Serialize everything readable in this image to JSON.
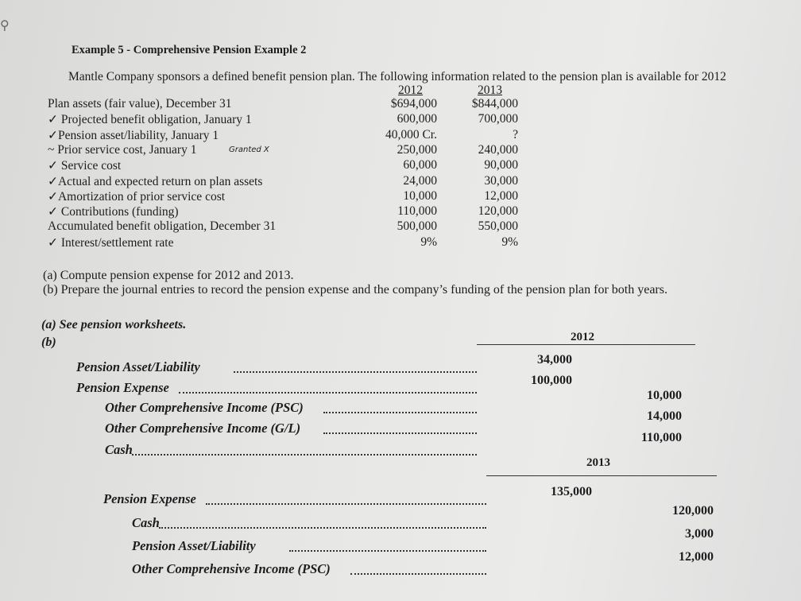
{
  "search_icon": "magnifier-icon",
  "title": "Example 5 - Comprehensive Pension Example 2",
  "intro": "Mantle Company sponsors a defined benefit pension plan. The following information related to the pension plan is available for 2012",
  "table": {
    "headers": [
      "2012",
      "2013"
    ],
    "rows": [
      {
        "label": "Plan assets (fair value), December 31",
        "y2012": "$694,000",
        "y2013": "$844,000"
      },
      {
        "label": "✓ Projected benefit obligation, January 1",
        "y2012": "600,000",
        "y2013": "700,000"
      },
      {
        "label": "✓Pension asset/liability, January 1",
        "y2012": "40,000 Cr.",
        "y2013": "?"
      },
      {
        "label": "~ Prior service cost, January 1",
        "y2012": "250,000",
        "y2013": "240,000",
        "note": "Granted X"
      },
      {
        "label": "✓ Service cost",
        "y2012": "60,000",
        "y2013": "90,000"
      },
      {
        "label": "✓Actual and expected return on plan assets",
        "y2012": "24,000",
        "y2013": "30,000"
      },
      {
        "label": "✓Amortization of prior service cost",
        "y2012": "10,000",
        "y2013": "12,000"
      },
      {
        "label": "✓ Contributions (funding)",
        "y2012": "110,000",
        "y2013": "120,000"
      },
      {
        "label": "Accumulated benefit obligation, December 31",
        "y2012": "500,000",
        "y2013": "550,000"
      },
      {
        "label": "✓ Interest/settlement rate",
        "y2012": "9%",
        "y2013": "9%"
      }
    ]
  },
  "questions": {
    "a": "(a) Compute pension expense for 2012 and 2013.",
    "b": "(b) Prepare the journal entries to record the pension expense and the company’s funding of the pension plan for both years."
  },
  "solution": {
    "a": "(a)   See pension worksheets.",
    "b": "(b)",
    "year1": "2012",
    "entries1": [
      {
        "account": "Pension Asset/Liability",
        "debit": "34,000",
        "credit": ""
      },
      {
        "account": "Pension Expense",
        "debit": "100,000",
        "credit": ""
      },
      {
        "account": "Other Comprehensive Income (PSC)",
        "debit": "",
        "credit": "10,000"
      },
      {
        "account": "Other Comprehensive Income (G/L)",
        "debit": "",
        "credit": "14,000"
      },
      {
        "account": "Cash",
        "debit": "",
        "credit": "110,000"
      }
    ],
    "year2": "2013",
    "entries2": [
      {
        "account": "Pension Expense",
        "debit": "135,000",
        "credit": ""
      },
      {
        "account": "Cash",
        "debit": "",
        "credit": "120,000"
      },
      {
        "account": "Pension Asset/Liability",
        "debit": "",
        "credit": "3,000"
      },
      {
        "account": "Other Comprehensive Income (PSC)",
        "debit": "",
        "credit": "12,000"
      }
    ]
  }
}
